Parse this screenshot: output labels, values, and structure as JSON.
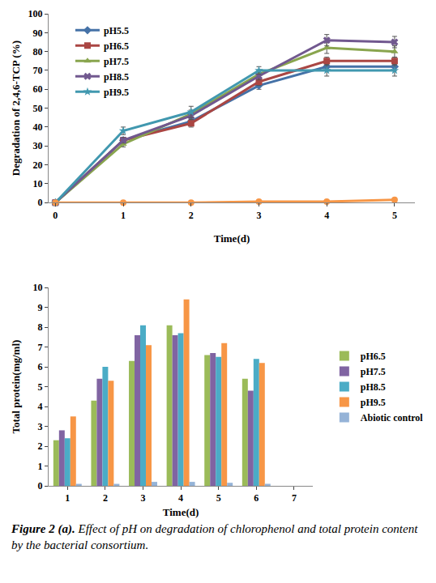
{
  "chart_data": [
    {
      "type": "line",
      "x_label": "Time(d)",
      "y_label": "Degradation of 2,4,6-TCP (%)",
      "x": [
        0,
        1,
        2,
        3,
        4,
        5
      ],
      "xlim": [
        -0.1,
        5.3
      ],
      "xticks": [
        0,
        1,
        2,
        3,
        4,
        5
      ],
      "ylim": [
        0,
        100
      ],
      "yticks": [
        0,
        10,
        20,
        30,
        40,
        50,
        60,
        70,
        80,
        90,
        100
      ],
      "grid": false,
      "legend": "upper left",
      "series": [
        {
          "name": "pH5.5",
          "color": "#4572A7",
          "marker": "diamond",
          "values": [
            0,
            33,
            43,
            62,
            72,
            72
          ],
          "errors": [
            0,
            1.5,
            2,
            2,
            2,
            2
          ]
        },
        {
          "name": "pH6.5",
          "color": "#AA4643",
          "marker": "square",
          "values": [
            0,
            33,
            42,
            64,
            75,
            75
          ],
          "errors": [
            0,
            1.5,
            2,
            2,
            2,
            2
          ]
        },
        {
          "name": "pH7.5",
          "color": "#89A54E",
          "marker": "triangle-up",
          "values": [
            0,
            31,
            47,
            68,
            82,
            80
          ],
          "errors": [
            0,
            1.5,
            2,
            2,
            3,
            3
          ]
        },
        {
          "name": "pH8.5",
          "color": "#71588F",
          "marker": "x",
          "values": [
            0,
            33,
            46,
            67,
            86,
            85
          ],
          "errors": [
            0,
            1.5,
            2,
            2,
            3,
            3
          ]
        },
        {
          "name": "pH9.5",
          "color": "#4198AF",
          "marker": "star",
          "values": [
            0,
            38,
            48,
            70,
            70,
            70
          ],
          "errors": [
            0,
            2,
            3,
            2,
            3,
            3
          ]
        },
        {
          "color": "#F79646",
          "marker": "circle",
          "values": [
            0,
            0,
            0,
            0.5,
            0.5,
            1.5
          ]
        }
      ]
    },
    {
      "type": "bar",
      "x_label": "Time(d)",
      "y_label": "Total protein(mg/ml)",
      "categories": [
        "1",
        "2",
        "3",
        "4",
        "5",
        "6",
        "7"
      ],
      "ylim": [
        0,
        10
      ],
      "yticks": [
        0,
        1,
        2,
        3,
        4,
        5,
        6,
        7,
        8,
        9,
        10
      ],
      "grid": false,
      "legend": "right",
      "series": [
        {
          "name": "pH6.5",
          "color": "#9BBB59",
          "values": [
            2.3,
            4.3,
            6.3,
            8.1,
            6.6,
            5.4,
            null
          ]
        },
        {
          "name": "pH7.5",
          "color": "#8064A2",
          "values": [
            2.8,
            5.4,
            7.6,
            7.6,
            6.7,
            4.8,
            null
          ]
        },
        {
          "name": "pH8.5",
          "color": "#4BACC6",
          "values": [
            2.4,
            6.0,
            8.1,
            7.7,
            6.5,
            6.4,
            null
          ]
        },
        {
          "name": "pH9.5",
          "color": "#F79646",
          "values": [
            3.5,
            5.3,
            7.1,
            9.4,
            7.2,
            6.2,
            null
          ]
        },
        {
          "name": "Abiotic control",
          "color": "#95B3D7",
          "values": [
            0.1,
            0.1,
            0.2,
            0.2,
            0.15,
            0.1,
            null
          ]
        }
      ]
    }
  ],
  "caption": {
    "label": "Figure 2 (a).",
    "text": "Effect of pH on degradation of chlorophenol and total protein content by the bacterial consortium."
  }
}
